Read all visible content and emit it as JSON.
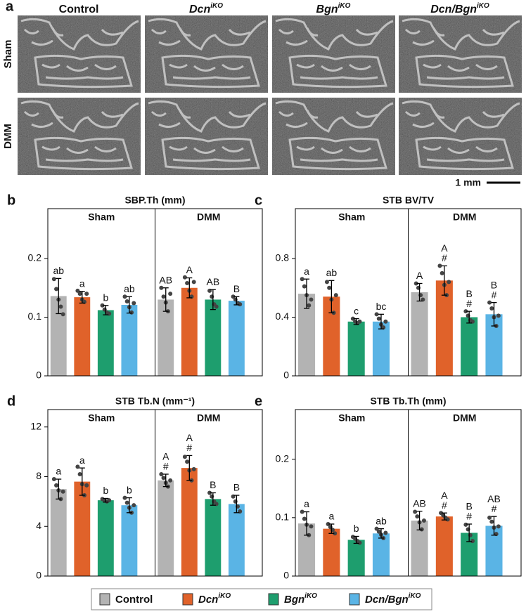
{
  "panel_a": {
    "label": "a",
    "rows": [
      "Sham",
      "DMM"
    ],
    "scale_bar": "1 mm"
  },
  "legend": [
    {
      "name": "Control",
      "color": "#b3b3b3",
      "italic": false
    },
    {
      "name": "Dcn",
      "sup": "iKO",
      "color": "#e0622a",
      "italic": true
    },
    {
      "name": "Bgn",
      "sup": "iKO",
      "color": "#1e9e6e",
      "italic": true
    },
    {
      "name": "Dcn/Bgn",
      "sup": "iKO",
      "color": "#5ab4e5",
      "italic": true
    }
  ],
  "chart_data": [
    {
      "type": "bar",
      "panel": "b",
      "title": "SBP.Th (mm)",
      "categories": [
        "Sham",
        "DMM"
      ],
      "ylim": [
        0,
        0.285
      ],
      "yticks": [
        0,
        0.1,
        0.2
      ],
      "series": [
        {
          "color": "#b3b3b3",
          "values": [
            0.136,
            0.13
          ],
          "errors": [
            0.03,
            0.02
          ],
          "points": [
            [
              0.165,
              0.148,
              0.13,
              0.118,
              0.105
            ],
            [
              0.15,
              0.135,
              0.125,
              0.11,
              0.14
            ]
          ],
          "letters": [
            "ab",
            "AB"
          ],
          "marks": [
            null,
            null
          ]
        },
        {
          "color": "#e0622a",
          "values": [
            0.134,
            0.15
          ],
          "errors": [
            0.01,
            0.017
          ],
          "points": [
            [
              0.145,
              0.14,
              0.13,
              0.126,
              0.14
            ],
            [
              0.168,
              0.158,
              0.145,
              0.135,
              0.16
            ]
          ],
          "letters": [
            "a",
            "A"
          ],
          "marks": [
            null,
            null
          ]
        },
        {
          "color": "#1e9e6e",
          "values": [
            0.112,
            0.13
          ],
          "errors": [
            0.008,
            0.017
          ],
          "points": [
            [
              0.12,
              0.113,
              0.108,
              0.106
            ],
            [
              0.145,
              0.135,
              0.122,
              0.118
            ]
          ],
          "letters": [
            "b",
            "AB"
          ],
          "marks": [
            null,
            null
          ]
        },
        {
          "color": "#5ab4e5",
          "values": [
            0.121,
            0.128
          ],
          "errors": [
            0.014,
            0.007
          ],
          "points": [
            [
              0.135,
              0.127,
              0.117,
              0.108,
              0.124
            ],
            [
              0.135,
              0.13,
              0.124,
              0.122
            ]
          ],
          "letters": [
            "ab",
            "B"
          ],
          "marks": [
            null,
            null
          ]
        }
      ]
    },
    {
      "type": "bar",
      "panel": "c",
      "title": "STB BV/TV",
      "categories": [
        "Sham",
        "DMM"
      ],
      "ylim": [
        0,
        1.14
      ],
      "yticks": [
        0,
        0.4,
        0.8
      ],
      "series": [
        {
          "color": "#b3b3b3",
          "values": [
            0.56,
            0.57
          ],
          "errors": [
            0.1,
            0.06
          ],
          "points": [
            [
              0.66,
              0.61,
              0.55,
              0.48,
              0.52
            ],
            [
              0.63,
              0.6,
              0.55,
              0.52
            ]
          ],
          "letters": [
            "a",
            "A"
          ],
          "marks": [
            null,
            null
          ]
        },
        {
          "color": "#e0622a",
          "values": [
            0.54,
            0.65
          ],
          "errors": [
            0.11,
            0.1
          ],
          "points": [
            [
              0.64,
              0.6,
              0.52,
              0.43,
              0.55
            ],
            [
              0.75,
              0.7,
              0.62,
              0.55,
              0.64
            ]
          ],
          "letters": [
            "ab",
            "A"
          ],
          "marks": [
            null,
            "#"
          ]
        },
        {
          "color": "#1e9e6e",
          "values": [
            0.37,
            0.4
          ],
          "errors": [
            0.02,
            0.04
          ],
          "points": [
            [
              0.39,
              0.37,
              0.36,
              0.37
            ],
            [
              0.44,
              0.41,
              0.38,
              0.37
            ]
          ],
          "letters": [
            "c",
            "B"
          ],
          "marks": [
            null,
            "#"
          ]
        },
        {
          "color": "#5ab4e5",
          "values": [
            0.37,
            0.42
          ],
          "errors": [
            0.05,
            0.08
          ],
          "points": [
            [
              0.42,
              0.39,
              0.35,
              0.33,
              0.37
            ],
            [
              0.5,
              0.46,
              0.4,
              0.34,
              0.41
            ]
          ],
          "letters": [
            "bc",
            "B"
          ],
          "marks": [
            null,
            "#"
          ]
        }
      ]
    },
    {
      "type": "bar",
      "panel": "d",
      "title": "STB Tb.N (mm⁻¹)",
      "categories": [
        "Sham",
        "DMM"
      ],
      "ylim": [
        0,
        13.4
      ],
      "yticks": [
        0,
        4,
        8,
        12
      ],
      "series": [
        {
          "color": "#b3b3b3",
          "values": [
            7.0,
            7.7
          ],
          "errors": [
            0.8,
            0.5
          ],
          "points": [
            [
              7.8,
              7.3,
              6.9,
              6.2,
              6.8
            ],
            [
              8.2,
              7.9,
              7.5,
              7.2,
              7.7
            ]
          ],
          "letters": [
            "a",
            "A"
          ],
          "marks": [
            null,
            "#"
          ]
        },
        {
          "color": "#e0622a",
          "values": [
            7.6,
            8.7
          ],
          "errors": [
            1.1,
            1.0
          ],
          "points": [
            [
              8.8,
              8.2,
              7.4,
              6.5,
              7.3
            ],
            [
              9.6,
              9.2,
              8.5,
              7.7,
              8.6
            ]
          ],
          "letters": [
            "a",
            "A"
          ],
          "marks": [
            null,
            "#"
          ]
        },
        {
          "color": "#1e9e6e",
          "values": [
            6.1,
            6.2
          ],
          "errors": [
            0.15,
            0.5
          ],
          "points": [
            [
              6.2,
              6.1,
              6.0,
              6.1
            ],
            [
              6.7,
              6.4,
              6.0,
              5.8
            ]
          ],
          "letters": [
            "b",
            "B"
          ],
          "marks": [
            null,
            null
          ]
        },
        {
          "color": "#5ab4e5",
          "values": [
            5.7,
            5.8
          ],
          "errors": [
            0.6,
            0.7
          ],
          "points": [
            [
              6.3,
              5.9,
              5.5,
              5.1,
              5.7
            ],
            [
              6.4,
              6.0,
              5.6,
              5.2
            ]
          ],
          "letters": [
            "b",
            "B"
          ],
          "marks": [
            null,
            null
          ]
        }
      ]
    },
    {
      "type": "bar",
      "panel": "e",
      "title": "STB Tb.Th (mm)",
      "categories": [
        "Sham",
        "DMM"
      ],
      "ylim": [
        0,
        0.285
      ],
      "yticks": [
        0,
        0.1,
        0.2
      ],
      "series": [
        {
          "color": "#b3b3b3",
          "values": [
            0.09,
            0.095
          ],
          "errors": [
            0.02,
            0.016
          ],
          "points": [
            [
              0.11,
              0.098,
              0.088,
              0.07,
              0.085
            ],
            [
              0.11,
              0.102,
              0.092,
              0.08,
              0.095
            ]
          ],
          "letters": [
            "a",
            "AB"
          ],
          "marks": [
            null,
            null
          ]
        },
        {
          "color": "#e0622a",
          "values": [
            0.081,
            0.102
          ],
          "errors": [
            0.008,
            0.006
          ],
          "points": [
            [
              0.089,
              0.084,
              0.079,
              0.073
            ],
            [
              0.108,
              0.104,
              0.1,
              0.097
            ]
          ],
          "letters": [
            "a",
            "A"
          ],
          "marks": [
            null,
            "#"
          ]
        },
        {
          "color": "#1e9e6e",
          "values": [
            0.062,
            0.074
          ],
          "errors": [
            0.006,
            0.015
          ],
          "points": [
            [
              0.067,
              0.064,
              0.06,
              0.057
            ],
            [
              0.088,
              0.08,
              0.07,
              0.06
            ]
          ],
          "letters": [
            "b",
            "B"
          ],
          "marks": [
            null,
            "#"
          ]
        },
        {
          "color": "#5ab4e5",
          "values": [
            0.073,
            0.086
          ],
          "errors": [
            0.008,
            0.016
          ],
          "points": [
            [
              0.081,
              0.076,
              0.071,
              0.065,
              0.074
            ],
            [
              0.1,
              0.093,
              0.083,
              0.072,
              0.085
            ]
          ],
          "letters": [
            "ab",
            "AB"
          ],
          "marks": [
            null,
            "#"
          ]
        }
      ]
    }
  ]
}
